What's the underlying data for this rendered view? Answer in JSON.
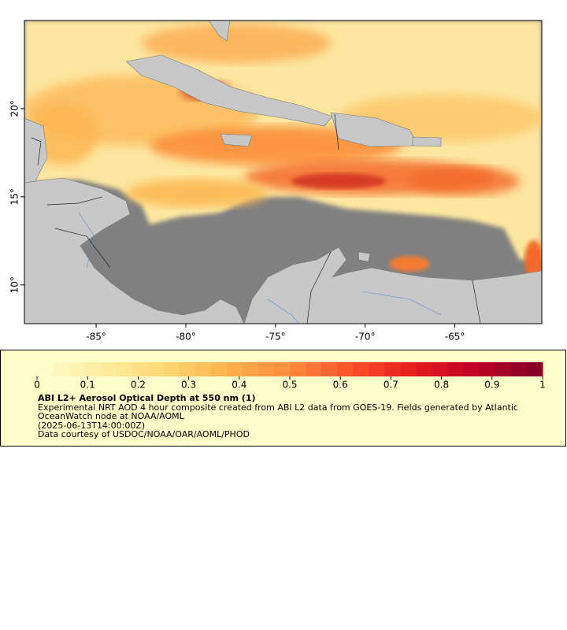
{
  "map": {
    "xlim": [
      -89,
      -60.15
    ],
    "ylim": [
      7.8,
      25
    ],
    "xticks": [
      {
        "value": -85,
        "label": "-85°"
      },
      {
        "value": -80,
        "label": "-80°"
      },
      {
        "value": -75,
        "label": "-75°"
      },
      {
        "value": -70,
        "label": "-70°"
      },
      {
        "value": -65,
        "label": "-65°"
      }
    ],
    "yticks": [
      {
        "value": 10,
        "label": "10°"
      },
      {
        "value": 15,
        "label": "15°"
      },
      {
        "value": 20,
        "label": "20°"
      }
    ]
  },
  "colorbar": {
    "lim": [
      0,
      1
    ],
    "ticks": [
      0,
      0.1,
      0.2,
      0.3,
      0.4,
      0.5,
      0.6,
      0.7,
      0.8,
      0.9,
      1
    ],
    "colors": [
      "#ffffcc",
      "#ffeda0",
      "#fed976",
      "#feb24c",
      "#fd8d3c",
      "#fc4e2a",
      "#e31a1c",
      "#bd0026",
      "#800026"
    ]
  },
  "legend": {
    "title": "ABI L2+ Aerosol Optical Depth at 550 nm (1)",
    "description": "Experimental NRT AOD 4 hour composite created from ABI L2 data from GOES-19. Fields generated by Atlantic OceanWatch node at NOAA/AOML",
    "time": "(2025-06-13T14:00:00Z)",
    "credit": "Data courtesy of USDOC/NOAA/OAR/AOML/PHOD"
  }
}
